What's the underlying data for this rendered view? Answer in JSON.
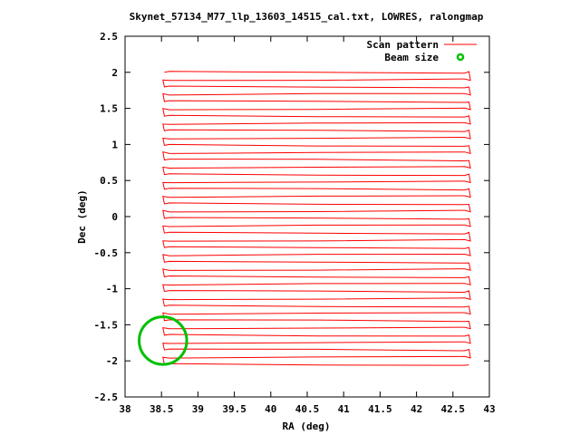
{
  "chart_data": {
    "type": "line",
    "title": "Skynet_57134_M77_llp_13603_14515_cal.txt, LOWRES, ralongmap",
    "xlabel": "RA (deg)",
    "ylabel": "Dec (deg)",
    "xlim": [
      38,
      43
    ],
    "ylim": [
      -2.5,
      2.5
    ],
    "x_ticks": [
      "38",
      "38.5",
      "39",
      "39.5",
      "40",
      "40.5",
      "41",
      "41.5",
      "42",
      "42.5",
      "43"
    ],
    "y_ticks": [
      "-2.5",
      "-2",
      "-1.5",
      "-1",
      "-0.5",
      "0",
      "0.5",
      "1",
      "1.5",
      "2",
      "2.5"
    ],
    "grid": false,
    "legend_position": "top-right",
    "legend": [
      {
        "label": "Scan pattern",
        "color": "#ff0000"
      },
      {
        "label": "Beam size",
        "color": "#00c000"
      }
    ],
    "scan": {
      "name": "Scan pattern",
      "color": "#ff0000",
      "ra_start": 38.55,
      "ra_end": 42.72,
      "dec_start": 2.0,
      "dec_end": -2.05,
      "legs": 41
    },
    "beam": {
      "name": "Beam size",
      "color": "#00c000",
      "center": [
        38.52,
        -1.72
      ],
      "radius_deg": 0.33
    }
  }
}
